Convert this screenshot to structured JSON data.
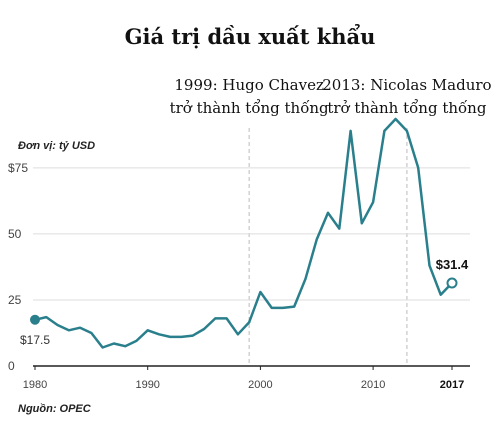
{
  "chart_data": {
    "type": "line",
    "title": "Giá trị dầu xuất khẩu",
    "unit_note": "Đơn vị: tỷ USD",
    "source": "Nguồn: OPEC",
    "x": [
      1980,
      1981,
      1982,
      1983,
      1984,
      1985,
      1986,
      1987,
      1988,
      1989,
      1990,
      1991,
      1992,
      1993,
      1994,
      1995,
      1996,
      1997,
      1998,
      1999,
      2000,
      2001,
      2002,
      2003,
      2004,
      2005,
      2006,
      2007,
      2008,
      2009,
      2010,
      2011,
      2012,
      2013,
      2014,
      2015,
      2016,
      2017
    ],
    "series": [
      {
        "values": [
          17.5,
          18.5,
          15.5,
          13.5,
          14.5,
          12.5,
          7.0,
          8.5,
          7.5,
          9.5,
          13.5,
          12.0,
          11.0,
          11.0,
          11.5,
          14.0,
          18.0,
          18.0,
          12.0,
          16.5,
          28.0,
          22.0,
          22.0,
          22.5,
          33.0,
          48.0,
          58.0,
          52.0,
          89.0,
          54.0,
          62.0,
          89.0,
          93.5,
          89.0,
          75.0,
          38.0,
          27.0,
          31.4
        ]
      }
    ],
    "y_ticks": [
      "$75",
      "50",
      "25",
      "0"
    ],
    "y_tick_values": [
      75,
      50,
      25,
      0
    ],
    "x_ticks": [
      "1980",
      "1990",
      "2000",
      "2010",
      "2017"
    ],
    "x_tick_values": [
      1980,
      1990,
      2000,
      2010,
      2017
    ],
    "xlim": [
      1980,
      2017
    ],
    "ylim": [
      0,
      95
    ],
    "grid": true,
    "annotations": [
      {
        "x": 1999,
        "lines": [
          "1999: Hugo Chavez",
          "trở thành tổng thống"
        ]
      },
      {
        "x": 2013,
        "lines": [
          "2013: Nicolas Maduro",
          "trở thành tổng thống"
        ]
      }
    ],
    "start_label": "$17.5",
    "end_label": "$31.4",
    "colors": {
      "line": "#2a7f8c",
      "grid": "#dddddd",
      "annotation_line": "#bbbbbb"
    }
  }
}
